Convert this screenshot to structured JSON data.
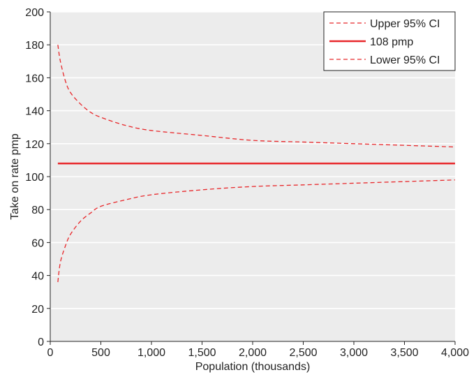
{
  "chart_data": {
    "type": "line",
    "title": "",
    "xlabel": "Population (thousands)",
    "ylabel": "Take on rate pmp",
    "xlim": [
      0,
      4000
    ],
    "ylim": [
      0,
      200
    ],
    "x_ticks": [
      0,
      500,
      1000,
      1500,
      2000,
      2500,
      3000,
      3500,
      4000
    ],
    "x_tick_labels": [
      "0",
      "500",
      "1,000",
      "1,500",
      "2,000",
      "2,500",
      "3,000",
      "3,500",
      "4,000"
    ],
    "y_ticks": [
      0,
      20,
      40,
      60,
      80,
      100,
      120,
      140,
      160,
      180,
      200
    ],
    "y_tick_labels": [
      "0",
      "20",
      "40",
      "60",
      "80",
      "100",
      "120",
      "140",
      "160",
      "180",
      "200"
    ],
    "grid": "horizontal",
    "background": "#ececec",
    "legend_position": "top-right",
    "series": [
      {
        "name": "Upper 95% CI",
        "style": "dashed",
        "color": "#e8272a",
        "x": [
          75,
          100,
          150,
          200,
          300,
          400,
          500,
          750,
          1000,
          1500,
          2000,
          2500,
          3000,
          3500,
          4000
        ],
        "y": [
          180,
          170,
          158,
          151,
          144,
          139,
          136,
          131,
          128,
          125,
          122,
          121,
          120,
          119,
          118
        ]
      },
      {
        "name": "108 pmp",
        "style": "solid",
        "color": "#e8272a",
        "x": [
          75,
          4000
        ],
        "y": [
          108,
          108
        ]
      },
      {
        "name": "Lower 95% CI",
        "style": "dashed",
        "color": "#e8272a",
        "x": [
          75,
          100,
          150,
          200,
          300,
          400,
          500,
          750,
          1000,
          1500,
          2000,
          2500,
          3000,
          3500,
          4000
        ],
        "y": [
          36,
          48,
          58,
          65,
          73,
          78,
          82,
          86,
          89,
          92,
          94,
          95,
          96,
          97,
          98
        ]
      }
    ]
  }
}
